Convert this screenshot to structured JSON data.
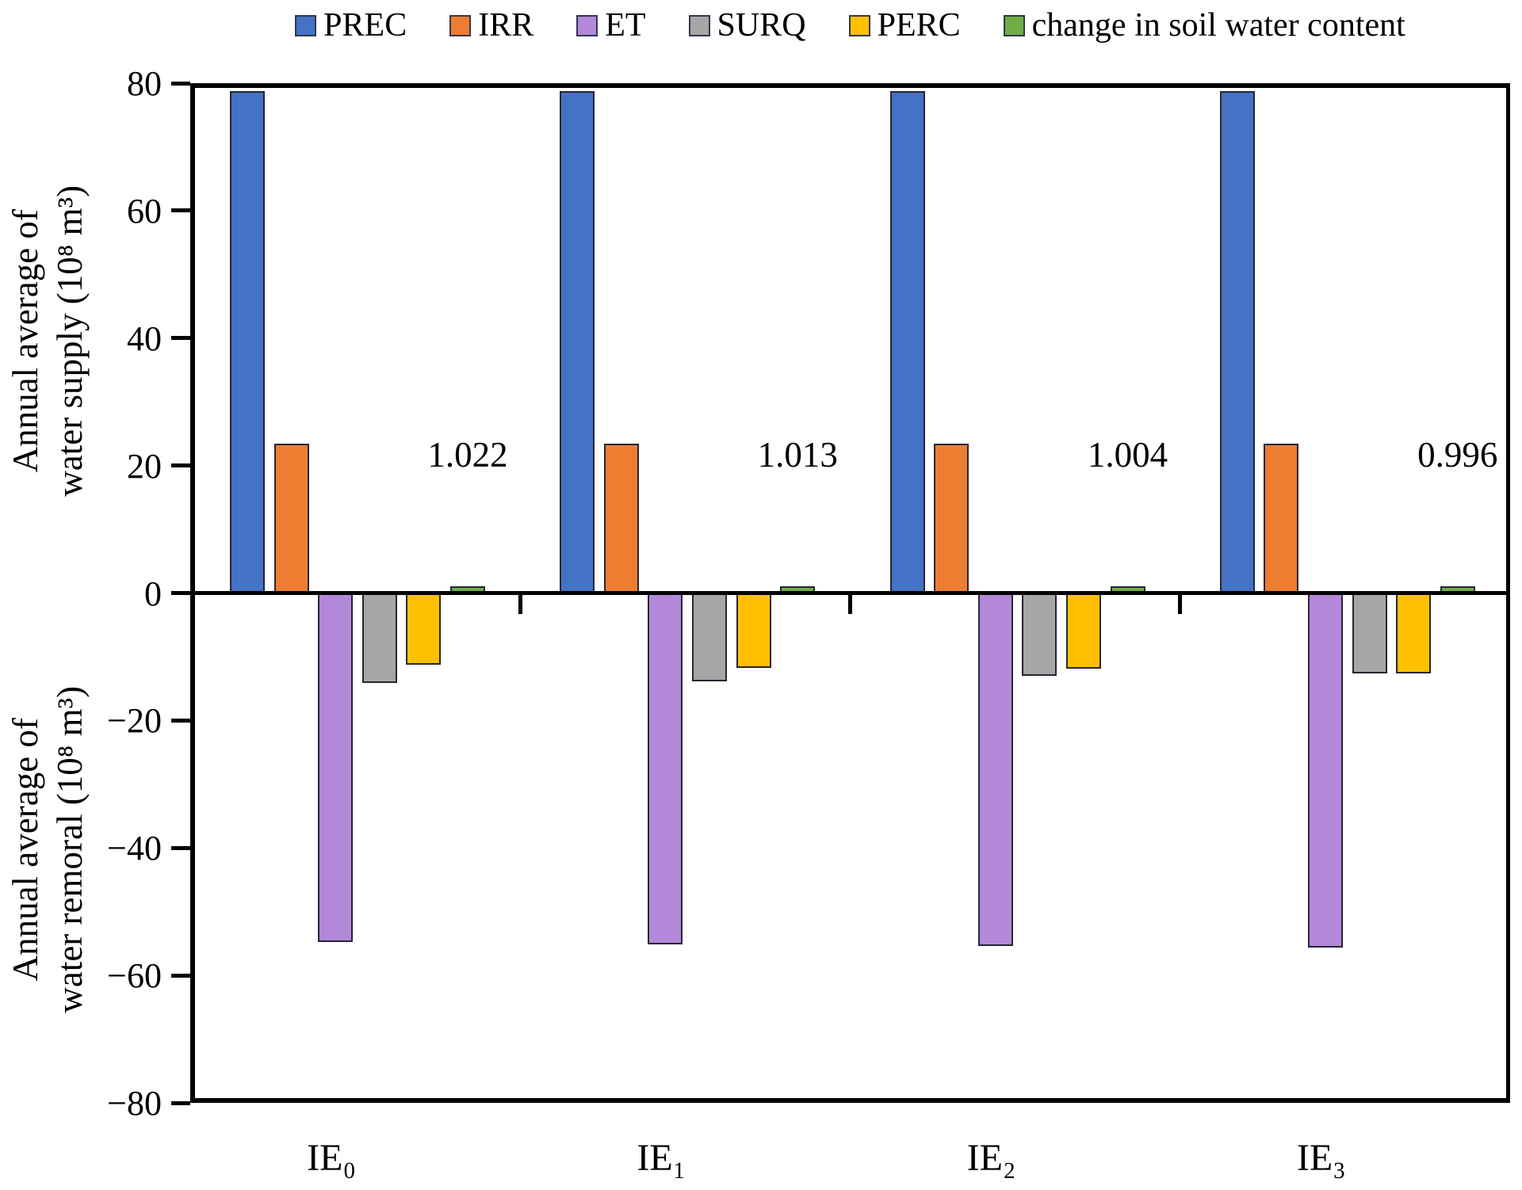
{
  "chart_data": {
    "type": "bar",
    "categories": [
      "IE₀",
      "IE₁",
      "IE₂",
      "IE₃"
    ],
    "series": [
      {
        "name": "PREC",
        "color": "#4472C4",
        "values": [
          78.7,
          78.7,
          78.7,
          78.7
        ]
      },
      {
        "name": "IRR",
        "color": "#ED7D31",
        "values": [
          23.4,
          23.4,
          23.4,
          23.4
        ]
      },
      {
        "name": "ET",
        "color": "#B388D9",
        "values": [
          -54.8,
          -55.1,
          -55.4,
          -55.6
        ]
      },
      {
        "name": "SURQ",
        "color": "#A6A6A6",
        "values": [
          -14.1,
          -13.9,
          -13.0,
          -12.6
        ]
      },
      {
        "name": "PERC",
        "color": "#FFC000",
        "values": [
          -11.2,
          -11.7,
          -11.9,
          -12.6
        ]
      },
      {
        "name": "change in soil water content",
        "color": "#70AD47",
        "values": [
          1.022,
          1.013,
          1.004,
          0.996
        ]
      }
    ],
    "data_labels": {
      "on_series": "change in soil water content",
      "values": [
        "1.022",
        "1.013",
        "1.004",
        "0.996"
      ]
    },
    "y_axis": {
      "tick_labels": [
        "80",
        "60",
        "40",
        "20",
        "0",
        "−20",
        "−40",
        "−60",
        "−80"
      ],
      "min": -80,
      "max": 80,
      "step": 20
    },
    "axis_titles": {
      "top_line1": "Annual average of",
      "top_line2": "water supply (10⁸ m³)",
      "bottom_line1": "Annual average of",
      "bottom_line2": "water remoral (10⁸ m³)"
    },
    "grid": false,
    "legend_position": "top",
    "title": ""
  }
}
